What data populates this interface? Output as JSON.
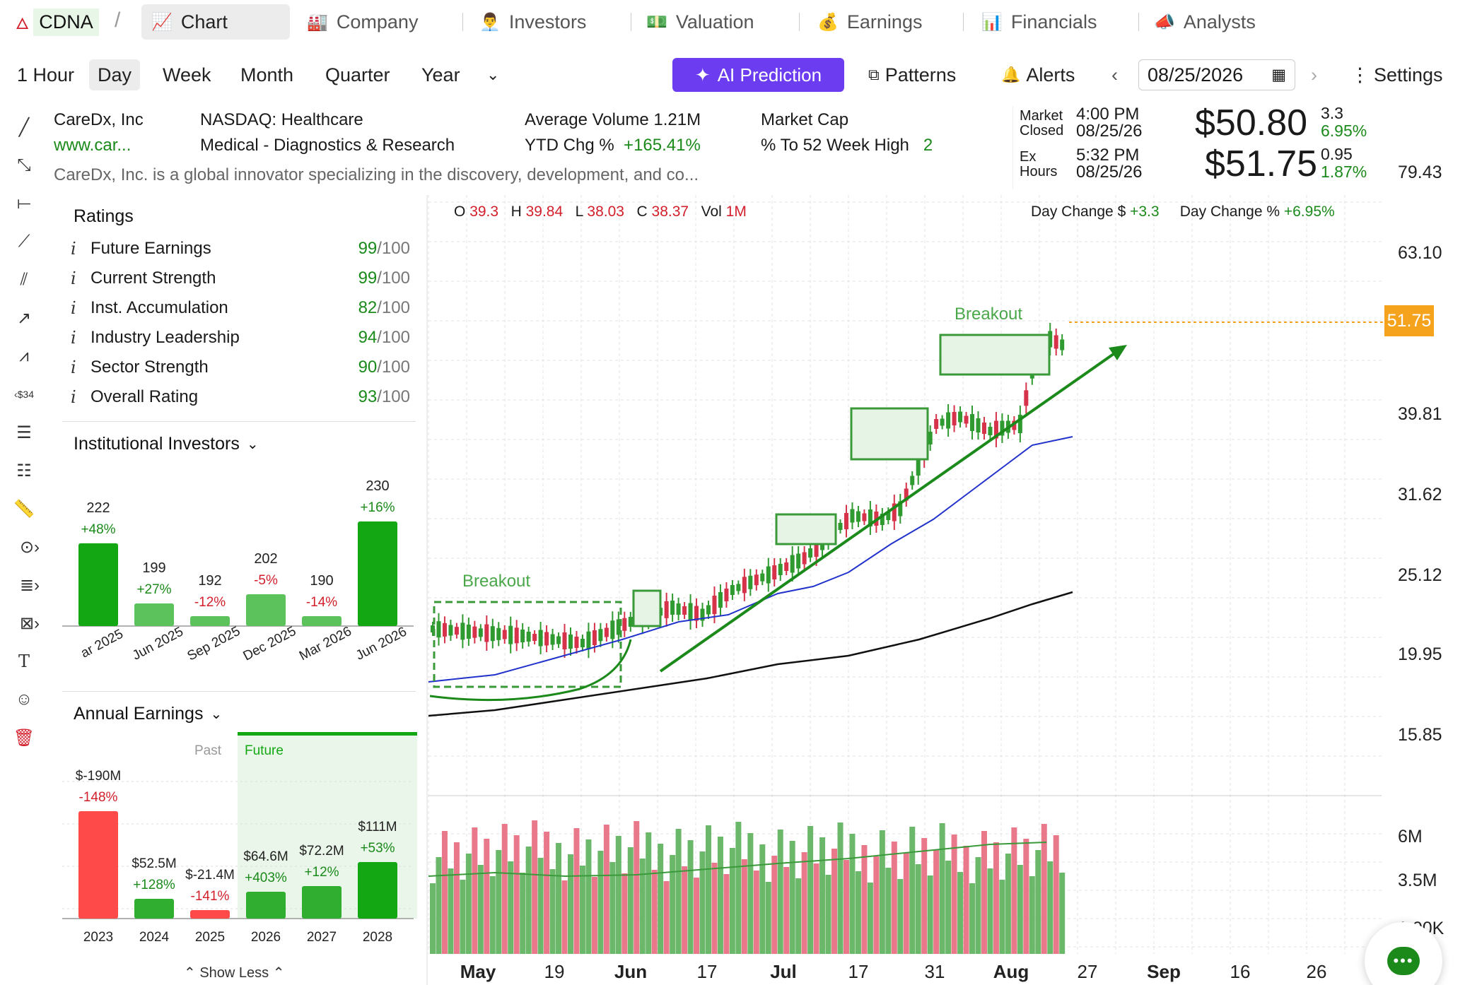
{
  "nav": {
    "ticker": "CDNA",
    "sep": "/",
    "tabs": [
      {
        "label": "Chart",
        "icon": "chart-icon"
      },
      {
        "label": "Company",
        "icon": "factory-icon"
      },
      {
        "label": "Investors",
        "icon": "investor-icon"
      },
      {
        "label": "Valuation",
        "icon": "money-icon"
      },
      {
        "label": "Earnings",
        "icon": "money-bag-icon"
      },
      {
        "label": "Financials",
        "icon": "bar-chart-icon"
      },
      {
        "label": "Analysts",
        "icon": "megaphone-icon"
      }
    ]
  },
  "toolbar": {
    "timeframes": [
      "1 Hour",
      "Day",
      "Week",
      "Month",
      "Quarter",
      "Year"
    ],
    "selected": "Day",
    "ai_label": "AI Prediction",
    "patterns_label": "Patterns",
    "alerts_label": "Alerts",
    "date": "08/25/2026",
    "settings_label": "Settings"
  },
  "company": {
    "name": "CareDx, Inc",
    "url": "www.car...",
    "exchange": "NASDAQ: Healthcare",
    "industry": "Medical - Diagnostics & Research",
    "avg_volume_label": "Average Volume",
    "avg_volume": "1.21M",
    "ytd_label": "YTD Chg %",
    "ytd": "+165.41%",
    "market_cap_label": "Market Cap",
    "high52_label": "% To 52 Week High",
    "high52_val": "2",
    "description": "CareDx, Inc. is a global innovator specializing in the discovery, development, and co..."
  },
  "quote": {
    "market_label_1": "Market",
    "market_label_2": "Closed",
    "market_time": "4:00 PM",
    "market_date": "08/25/26",
    "market_price": "$50.80",
    "market_chg": "3.3",
    "market_chg_pct": "6.95%",
    "ex_label_1": "Ex",
    "ex_label_2": "Hours",
    "ex_time": "5:32 PM",
    "ex_date": "08/25/26",
    "ex_price": "$51.75",
    "ex_chg": "0.95",
    "ex_chg_pct": "1.87%"
  },
  "ohlc": {
    "o_label": "O",
    "o": "39.3",
    "h_label": "H",
    "h": "39.84",
    "l_label": "L",
    "l": "38.03",
    "c_label": "C",
    "c": "38.37",
    "vol_label": "Vol",
    "vol": "1M",
    "day_chg_label": "Day Change $",
    "day_chg": "+3.3",
    "day_chg_pct_label": "Day Change %",
    "day_chg_pct": "+6.95%"
  },
  "ratings": {
    "title": "Ratings",
    "items": [
      {
        "label": "Future Earnings",
        "value": "99",
        "max": "/100"
      },
      {
        "label": "Current Strength",
        "value": "99",
        "max": "/100"
      },
      {
        "label": "Inst. Accumulation",
        "value": "82",
        "max": "/100"
      },
      {
        "label": "Industry Leadership",
        "value": "94",
        "max": "/100"
      },
      {
        "label": "Sector Strength",
        "value": "90",
        "max": "/100"
      },
      {
        "label": "Overall Rating",
        "value": "93",
        "max": "/100"
      }
    ]
  },
  "institutional": {
    "title": "Institutional Investors",
    "bars": [
      {
        "period": "ar 2025",
        "count": "222",
        "chg": "+48%",
        "value": 222,
        "up": true
      },
      {
        "period": "Jun 2025",
        "count": "199",
        "chg": "+27%",
        "value": 199,
        "up": true
      },
      {
        "period": "Sep 2025",
        "count": "192",
        "chg": "-12%",
        "value": 192,
        "up": false
      },
      {
        "period": "Dec 2025",
        "count": "202",
        "chg": "-5%",
        "value": 202,
        "up": false
      },
      {
        "period": "Mar 2026",
        "count": "190",
        "chg": "-14%",
        "value": 190,
        "up": false
      },
      {
        "period": "Jun 2026",
        "count": "230",
        "chg": "+16%",
        "value": 230,
        "up": true
      }
    ]
  },
  "annual": {
    "title": "Annual Earnings",
    "past_label": "Past",
    "future_label": "Future",
    "show_less": "Show Less",
    "bars": [
      {
        "year": "2023",
        "amount": "$-190M",
        "chg": "-148%",
        "value": -190
      },
      {
        "year": "2024",
        "amount": "$52.5M",
        "chg": "+128%",
        "value": 52.5
      },
      {
        "year": "2025",
        "amount": "$-21.4M",
        "chg": "-141%",
        "value": -21.4
      },
      {
        "year": "2026",
        "amount": "$64.6M",
        "chg": "+403%",
        "value": 64.6
      },
      {
        "year": "2027",
        "amount": "$72.2M",
        "chg": "+12%",
        "value": 72.2
      },
      {
        "year": "2028",
        "amount": "$111M",
        "chg": "+53%",
        "value": 111
      }
    ]
  },
  "chart_data": {
    "type": "candlestick",
    "y_ticks": [
      "79.43",
      "63.10",
      "39.81",
      "31.62",
      "25.12",
      "19.95",
      "15.85"
    ],
    "last_price_tag": "51.75",
    "vol_ticks": [
      "6M",
      "3.5M",
      "1.00K"
    ],
    "x_ticks": [
      "May",
      "19",
      "Jun",
      "17",
      "Jul",
      "17",
      "31",
      "Aug",
      "27",
      "Sep",
      "16",
      "26"
    ],
    "annotations": [
      "Breakout",
      "Breakout"
    ],
    "colors": {
      "up": "#2f9a2f",
      "down": "#d6334a",
      "ma_fast": "#2233cc",
      "ma_slow": "#111111",
      "trend": "#1b8a1b"
    }
  }
}
